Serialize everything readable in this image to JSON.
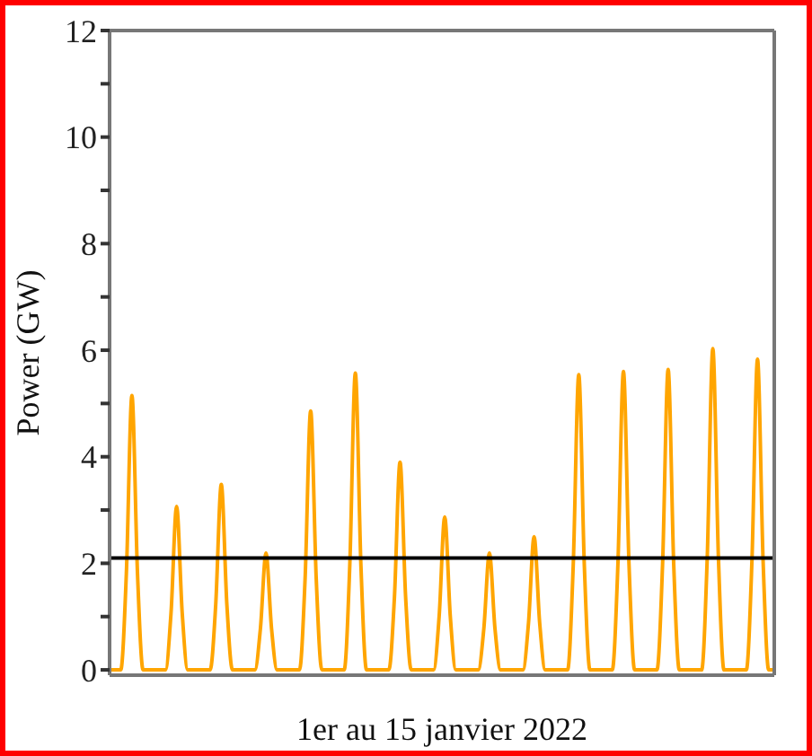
{
  "chart_data": {
    "type": "line",
    "xlabel": "1er au 15 janvier 2022",
    "ylabel": "Power (GW)",
    "categories": [
      null,
      null,
      null,
      null,
      null,
      null,
      null,
      null,
      null,
      null,
      null,
      null,
      null,
      null,
      null,
      null,
      null,
      null,
      null,
      null,
      null,
      null,
      null,
      null,
      null,
      null,
      null,
      null,
      null,
      null,
      null,
      null,
      null,
      null,
      null,
      null,
      null,
      null,
      null,
      null,
      null,
      null,
      null,
      null,
      null,
      null,
      null,
      null,
      null,
      null,
      null,
      null,
      null,
      null,
      null,
      null,
      null,
      null,
      null,
      null,
      null,
      null,
      null,
      null,
      null,
      null,
      null,
      null,
      null,
      null,
      null,
      null,
      null,
      null,
      null,
      null,
      null,
      null,
      null,
      null,
      null,
      null,
      null,
      null,
      null,
      null,
      null,
      null,
      null,
      null,
      null,
      null,
      null,
      null,
      null,
      null,
      null,
      null,
      null,
      null,
      null,
      null,
      null,
      null,
      null,
      null,
      null,
      null,
      null,
      null,
      null,
      null,
      null,
      null,
      null,
      null,
      null,
      null,
      null,
      null
    ],
    "series": [
      {
        "color": "#ffa500",
        "values": [
          0,
          0,
          0,
          1.8,
          5.15,
          1.8,
          0,
          0,
          0,
          0,
          0,
          1.07,
          3.07,
          1.07,
          0,
          0,
          0,
          0,
          0,
          1.22,
          3.48,
          1.22,
          0,
          0,
          0,
          0,
          0,
          0.77,
          2.19,
          0.77,
          0,
          0,
          0,
          0,
          0,
          1.7,
          4.86,
          1.7,
          0,
          0,
          0,
          0,
          0,
          1.95,
          5.57,
          1.95,
          0,
          0,
          0,
          0,
          0,
          1.37,
          3.9,
          1.37,
          0,
          0,
          0,
          0,
          0,
          1.0,
          2.87,
          1.0,
          0,
          0,
          0,
          0,
          0,
          0.77,
          2.19,
          0.77,
          0,
          0,
          0,
          0,
          0,
          0.88,
          2.5,
          0.88,
          0,
          0,
          0,
          0,
          0,
          1.94,
          5.54,
          1.94,
          0,
          0,
          0,
          0,
          0,
          1.96,
          5.6,
          1.96,
          0,
          0,
          0,
          0,
          0,
          1.97,
          5.64,
          1.97,
          0,
          0,
          0,
          0,
          0,
          2.11,
          6.03,
          2.11,
          0,
          0,
          0,
          0,
          0,
          2.04,
          5.83,
          2.04,
          0,
          0
        ]
      }
    ],
    "ylim": [
      -0.1,
      12
    ],
    "yticks": [
      0,
      {
        "value": 1,
        "label": null
      },
      2,
      {
        "value": 3,
        "label": null
      },
      4,
      {
        "value": 5,
        "label": null
      },
      6,
      {
        "value": 7,
        "label": null
      },
      8,
      {
        "value": 9,
        "label": null
      },
      10,
      {
        "value": 11,
        "label": null
      },
      12
    ],
    "ref_lines": [
      {
        "axis": "y",
        "value": 2.1,
        "color": "#000000"
      }
    ],
    "tick_labels": "y",
    "grid": false,
    "legend": false,
    "marker": "none",
    "line_style": "solid"
  }
}
